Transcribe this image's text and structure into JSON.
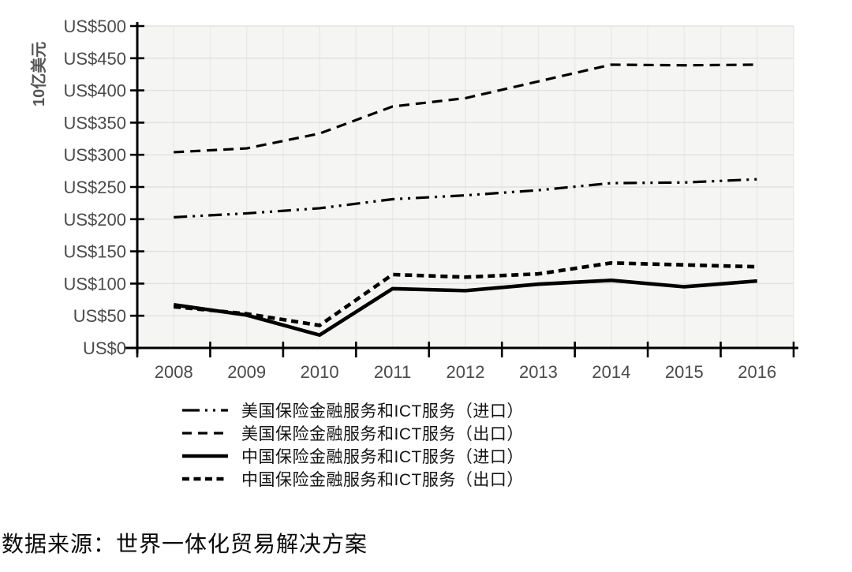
{
  "chart_data": {
    "type": "line",
    "title": "",
    "ylabel": "10亿美元",
    "xlabel": "",
    "categories": [
      "2008",
      "2009",
      "2010",
      "2011",
      "2012",
      "2013",
      "2014",
      "2015",
      "2016"
    ],
    "ylim": [
      0,
      500
    ],
    "y_tick_step": 50,
    "y_tick_labels": [
      "US$0",
      "US$50",
      "US$100",
      "US$150",
      "US$200",
      "US$250",
      "US$300",
      "US$350",
      "US$400",
      "US$450",
      "US$500"
    ],
    "grid": true,
    "line_color": "#000000",
    "axis_label_color": "#4a4a4a",
    "legend_position": "bottom-left",
    "series": [
      {
        "name": "美国保险金融服务和ICT服务（进口）",
        "style": "dash-dot-dot",
        "values": [
          203,
          209,
          217,
          231,
          237,
          245,
          256,
          257,
          262
        ]
      },
      {
        "name": "美国保险金融服务和ICT服务（出口）",
        "style": "dash",
        "values": [
          304,
          310,
          333,
          375,
          388,
          414,
          440,
          439,
          440
        ]
      },
      {
        "name": "中国保险金融服务和ICT服务（进口）",
        "style": "solid",
        "values": [
          67,
          51,
          20,
          92,
          89,
          99,
          105,
          95,
          104
        ]
      },
      {
        "name": "中国保险金融服务和ICT服务（出口）",
        "style": "dense-dash",
        "values": [
          64,
          53,
          35,
          114,
          110,
          115,
          132,
          129,
          126
        ]
      }
    ]
  },
  "footer": {
    "source": "数据来源：世界一体化贸易解决方案"
  }
}
